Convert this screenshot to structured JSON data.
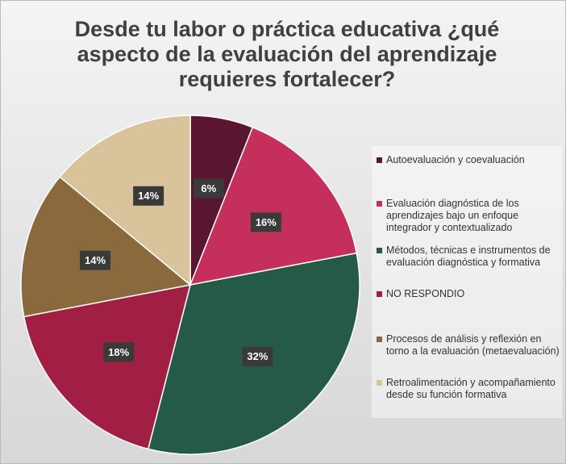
{
  "chart_data": {
    "type": "pie",
    "title": "Desde tu labor o práctica educativa ¿qué aspecto de la evaluación del aprendizaje requieres fortalecer?",
    "categories": [
      "Autoevaluación y coevaluación",
      "Evaluación diagnóstica de los aprendizajes bajo un enfoque integrador y contextualizado",
      "Métodos, técnicas e instrumentos de evaluación diagnóstica y formativa",
      "NO RESPONDIO",
      "Procesos de análisis y reflexión en torno a la evaluación (metaevaluación)",
      "Retroalimentación y acompañamiento desde su función formativa"
    ],
    "values": [
      6,
      16,
      32,
      18,
      14,
      14
    ],
    "value_labels": [
      "6%",
      "16%",
      "32%",
      "18%",
      "14%",
      "14%"
    ],
    "colors": [
      "#5a1530",
      "#c42f5c",
      "#255a49",
      "#a01f42",
      "#8a6a3c",
      "#d8c39b"
    ],
    "legend": "right"
  }
}
